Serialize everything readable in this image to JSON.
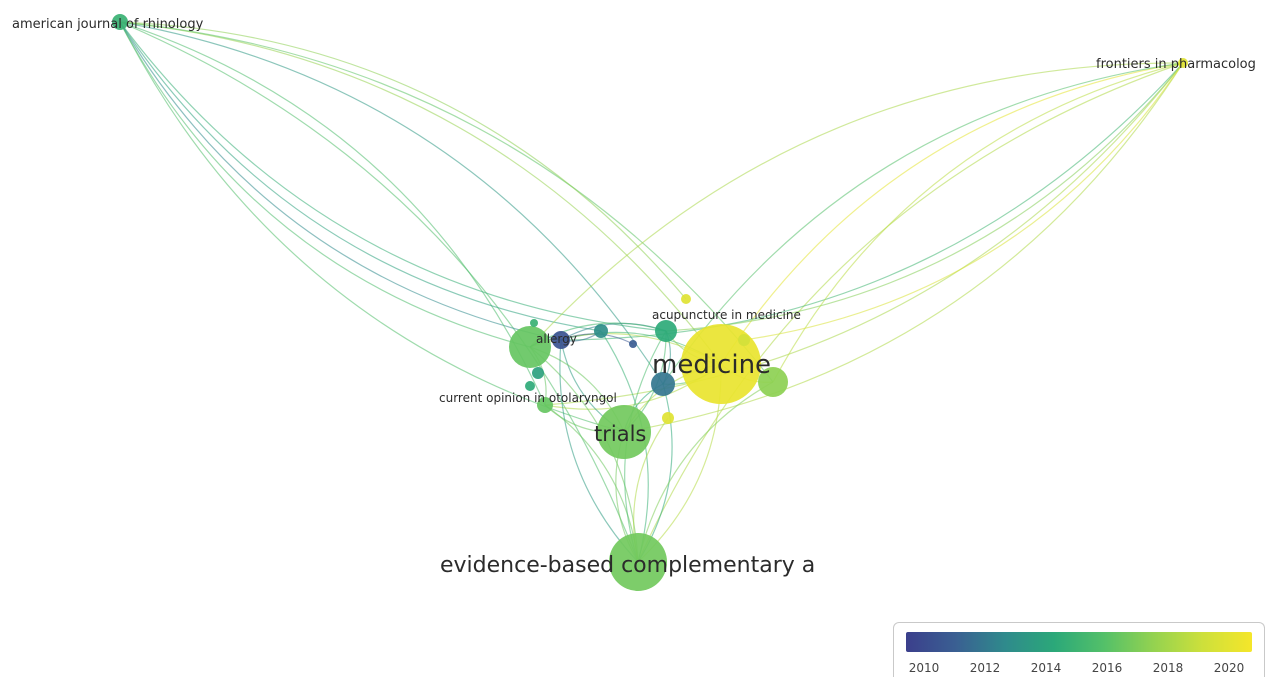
{
  "nodes": [
    {
      "id": "ajr",
      "label": "american journal of rhinology",
      "year": 2015.0,
      "weight": 2
    },
    {
      "id": "fip",
      "label": "frontiers in pharmacolog",
      "year": 2020.0,
      "weight": 2
    },
    {
      "id": "acu",
      "label": "acupuncture in medicine",
      "year": 2014.5,
      "weight": 5
    },
    {
      "id": "med",
      "label": "medicine",
      "year": 2020.4,
      "weight": 20
    },
    {
      "id": "all",
      "label": "allergy",
      "year": 2010.5,
      "weight": 4
    },
    {
      "id": "cur",
      "label": "current opinion in otolaryngol",
      "year": 2016.5,
      "weight": 3
    },
    {
      "id": "tri",
      "label": "trials",
      "year": 2016.8,
      "weight": 12
    },
    {
      "id": "ebc",
      "label": "evidence-based complementary a",
      "year": 2016.8,
      "weight": 14
    },
    {
      "id": "n1",
      "label": "",
      "year": 2016.5,
      "weight": 9
    },
    {
      "id": "n2",
      "label": "",
      "year": 2012.0,
      "weight": 6
    },
    {
      "id": "n3",
      "label": "",
      "year": 2017.5,
      "weight": 8
    },
    {
      "id": "n4",
      "label": "",
      "year": 2013.0,
      "weight": 3
    },
    {
      "id": "n5",
      "label": "",
      "year": 2011.0,
      "weight": 2
    },
    {
      "id": "n6",
      "label": "",
      "year": 2015.0,
      "weight": 2
    },
    {
      "id": "n7",
      "label": "",
      "year": 2014.0,
      "weight": 2
    },
    {
      "id": "n8",
      "label": "",
      "year": 2020.0,
      "weight": 2
    },
    {
      "id": "n9",
      "label": "",
      "year": 2020.0,
      "weight": 2
    },
    {
      "id": "n10",
      "label": "",
      "year": 2019.5,
      "weight": 2
    },
    {
      "id": "n11",
      "label": "",
      "year": 2014.5,
      "weight": 2
    }
  ],
  "edges": [
    [
      "ajr",
      "med"
    ],
    [
      "ajr",
      "tri"
    ],
    [
      "ajr",
      "ebc"
    ],
    [
      "ajr",
      "all"
    ],
    [
      "ajr",
      "cur"
    ],
    [
      "ajr",
      "n1"
    ],
    [
      "ajr",
      "n2"
    ],
    [
      "ajr",
      "acu"
    ],
    [
      "ajr",
      "n3"
    ],
    [
      "ajr",
      "n4"
    ],
    [
      "ajr",
      "n9"
    ],
    [
      "fip",
      "med"
    ],
    [
      "fip",
      "tri"
    ],
    [
      "fip",
      "ebc"
    ],
    [
      "fip",
      "all"
    ],
    [
      "fip",
      "n1"
    ],
    [
      "fip",
      "acu"
    ],
    [
      "fip",
      "n2"
    ],
    [
      "fip",
      "cur"
    ],
    [
      "fip",
      "n3"
    ],
    [
      "fip",
      "n10"
    ],
    [
      "med",
      "tri"
    ],
    [
      "med",
      "ebc"
    ],
    [
      "med",
      "all"
    ],
    [
      "med",
      "acu"
    ],
    [
      "med",
      "n1"
    ],
    [
      "med",
      "n2"
    ],
    [
      "med",
      "n3"
    ],
    [
      "med",
      "cur"
    ],
    [
      "tri",
      "ebc"
    ],
    [
      "tri",
      "all"
    ],
    [
      "tri",
      "n1"
    ],
    [
      "tri",
      "cur"
    ],
    [
      "tri",
      "acu"
    ],
    [
      "tri",
      "n2"
    ],
    [
      "ebc",
      "n1"
    ],
    [
      "ebc",
      "all"
    ],
    [
      "ebc",
      "cur"
    ],
    [
      "ebc",
      "acu"
    ],
    [
      "ebc",
      "n2"
    ],
    [
      "ebc",
      "n3"
    ],
    [
      "ebc",
      "n4"
    ],
    [
      "ebc",
      "n8"
    ],
    [
      "all",
      "n1"
    ],
    [
      "all",
      "acu"
    ],
    [
      "all",
      "n4"
    ],
    [
      "all",
      "n5"
    ],
    [
      "acu",
      "n1"
    ],
    [
      "n1",
      "cur"
    ],
    [
      "n2",
      "acu"
    ]
  ],
  "legend": {
    "scale_min": 2009.5,
    "scale_max": 2020.9,
    "ticks": [
      "2010",
      "2012",
      "2014",
      "2016",
      "2018",
      "2020"
    ]
  }
}
